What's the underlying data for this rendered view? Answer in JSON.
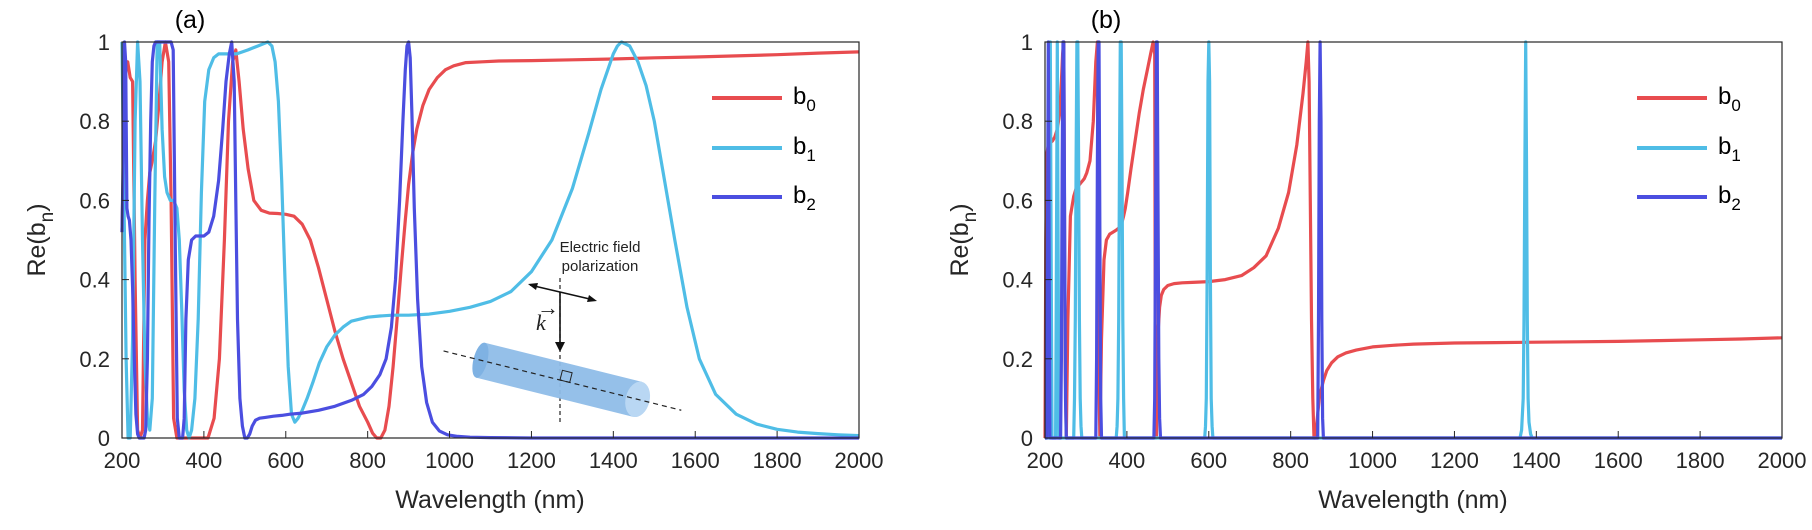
{
  "colors": {
    "b0": "#e84c4f",
    "b1": "#4fbde6",
    "b2": "#4b4ee0",
    "axis": "#262626",
    "rod": "#8fbde8"
  },
  "chart_data": [
    {
      "type": "line",
      "title": "(a)",
      "xlabel": "Wavelength (nm)",
      "ylabel": "Re(b_n)",
      "xlim": [
        200,
        2000
      ],
      "ylim": [
        0,
        1
      ],
      "xticks": [
        "200",
        "400",
        "600",
        "800",
        "1000",
        "1200",
        "1400",
        "1600",
        "1800",
        "2000"
      ],
      "yticks": [
        "0",
        "0.2",
        "0.4",
        "0.6",
        "0.8",
        "1"
      ],
      "legend_position": "top-right",
      "inset": {
        "label_line1": "Electric field",
        "label_line2": "polarization",
        "k_label": "k"
      },
      "series": [
        {
          "key": "b0",
          "name": "b",
          "sub": "0",
          "x": [
            200,
            208,
            214,
            220,
            226,
            232,
            238,
            244,
            250,
            256,
            262,
            268,
            274,
            282,
            290,
            298,
            306,
            314,
            320,
            326,
            334,
            342,
            350,
            360,
            372,
            390,
            410,
            425,
            438,
            450,
            460,
            470,
            478,
            486,
            496,
            508,
            522,
            540,
            560,
            580,
            600,
            620,
            640,
            660,
            680,
            700,
            720,
            740,
            760,
            780,
            800,
            812,
            822,
            832,
            842,
            852,
            862,
            872,
            882,
            892,
            900,
            910,
            920,
            935,
            950,
            970,
            990,
            1010,
            1040,
            1080,
            1120,
            1200,
            1300,
            1400,
            1500,
            1600,
            1700,
            1800,
            1900,
            2000
          ],
          "y": [
            0.52,
            0.92,
            0.95,
            0.91,
            0.9,
            0.4,
            0.02,
            0.0,
            0.02,
            0.5,
            0.6,
            0.67,
            0.7,
            0.75,
            0.84,
            0.95,
            1.0,
            0.95,
            0.6,
            0.05,
            0.0,
            0.0,
            0.0,
            0.0,
            0.0,
            0.0,
            0.0,
            0.05,
            0.2,
            0.5,
            0.8,
            0.95,
            0.98,
            0.9,
            0.78,
            0.68,
            0.6,
            0.575,
            0.568,
            0.567,
            0.565,
            0.56,
            0.54,
            0.5,
            0.43,
            0.35,
            0.27,
            0.2,
            0.14,
            0.08,
            0.04,
            0.012,
            0.0,
            0.0,
            0.02,
            0.08,
            0.18,
            0.3,
            0.43,
            0.55,
            0.64,
            0.72,
            0.78,
            0.84,
            0.88,
            0.91,
            0.93,
            0.94,
            0.948,
            0.95,
            0.952,
            0.953,
            0.955,
            0.957,
            0.96,
            0.962,
            0.965,
            0.968,
            0.972,
            0.975
          ]
        },
        {
          "key": "b1",
          "name": "b",
          "sub": "1",
          "x": [
            200,
            205,
            210,
            215,
            220,
            226,
            232,
            238,
            244,
            250,
            256,
            262,
            268,
            274,
            280,
            286,
            292,
            298,
            304,
            310,
            318,
            326,
            334,
            340,
            346,
            352,
            358,
            364,
            370,
            378,
            386,
            394,
            402,
            412,
            424,
            436,
            450,
            466,
            480,
            494,
            508,
            520,
            532,
            544,
            556,
            566,
            574,
            582,
            590,
            598,
            606,
            614,
            622,
            630,
            640,
            652,
            666,
            682,
            700,
            720,
            740,
            760,
            780,
            800,
            830,
            860,
            900,
            950,
            1000,
            1050,
            1100,
            1150,
            1200,
            1250,
            1300,
            1340,
            1370,
            1390,
            1400,
            1410,
            1420,
            1440,
            1460,
            1480,
            1500,
            1520,
            1550,
            1580,
            1610,
            1650,
            1700,
            1750,
            1800,
            1850,
            1900,
            1950,
            2000
          ],
          "y": [
            1.0,
            0.6,
            0.2,
            0.0,
            0.0,
            0.25,
            0.8,
            1.0,
            0.9,
            0.5,
            0.2,
            0.05,
            0.02,
            0.1,
            0.6,
            1.0,
            1.0,
            0.78,
            0.66,
            0.62,
            0.6,
            0.6,
            0.58,
            0.5,
            0.32,
            0.12,
            0.02,
            0.0,
            0.02,
            0.1,
            0.3,
            0.62,
            0.85,
            0.93,
            0.96,
            0.97,
            0.97,
            0.97,
            0.97,
            0.975,
            0.98,
            0.985,
            0.99,
            0.995,
            1.0,
            0.99,
            0.95,
            0.85,
            0.65,
            0.4,
            0.18,
            0.06,
            0.04,
            0.05,
            0.07,
            0.1,
            0.14,
            0.19,
            0.23,
            0.26,
            0.28,
            0.295,
            0.3,
            0.305,
            0.308,
            0.31,
            0.31,
            0.313,
            0.32,
            0.33,
            0.345,
            0.37,
            0.42,
            0.5,
            0.63,
            0.77,
            0.88,
            0.94,
            0.97,
            0.99,
            1.0,
            0.99,
            0.95,
            0.89,
            0.8,
            0.68,
            0.5,
            0.33,
            0.2,
            0.11,
            0.06,
            0.035,
            0.022,
            0.015,
            0.011,
            0.008,
            0.006
          ]
        },
        {
          "key": "b2",
          "name": "b",
          "sub": "2",
          "x": [
            200,
            203,
            206,
            209,
            212,
            215,
            218,
            222,
            226,
            230,
            234,
            238,
            242,
            246,
            250,
            254,
            258,
            262,
            266,
            270,
            274,
            278,
            282,
            286,
            290,
            296,
            300,
            305,
            310,
            315,
            320,
            325,
            330,
            335,
            340,
            344,
            348,
            352,
            356,
            362,
            370,
            380,
            390,
            400,
            412,
            424,
            436,
            446,
            454,
            462,
            468,
            474,
            478,
            482,
            488,
            494,
            500,
            506,
            512,
            518,
            526,
            536,
            550,
            570,
            590,
            610,
            640,
            680,
            720,
            760,
            790,
            810,
            830,
            845,
            858,
            868,
            878,
            886,
            892,
            896,
            900,
            904,
            908,
            914,
            922,
            932,
            944,
            958,
            975,
            995,
            1020,
            1050,
            1100,
            1200,
            1400,
            1600,
            1800,
            2000
          ],
          "y": [
            0.52,
            0.7,
            1.0,
            0.95,
            0.58,
            0.56,
            0.55,
            0.5,
            0.38,
            0.2,
            0.06,
            0.01,
            0.0,
            0.0,
            0.0,
            0.0,
            0.02,
            0.2,
            0.55,
            0.8,
            0.95,
            0.99,
            1.0,
            1.0,
            1.0,
            1.0,
            1.0,
            1.0,
            1.0,
            1.0,
            1.0,
            0.98,
            0.5,
            0.05,
            0.0,
            0.0,
            0.0,
            0.05,
            0.3,
            0.45,
            0.5,
            0.51,
            0.51,
            0.51,
            0.52,
            0.56,
            0.65,
            0.78,
            0.9,
            0.97,
            1.0,
            0.9,
            0.6,
            0.3,
            0.1,
            0.03,
            0.0,
            0.0,
            0.01,
            0.03,
            0.045,
            0.05,
            0.052,
            0.055,
            0.057,
            0.06,
            0.063,
            0.07,
            0.08,
            0.095,
            0.11,
            0.13,
            0.16,
            0.2,
            0.28,
            0.4,
            0.6,
            0.8,
            0.93,
            0.99,
            1.0,
            0.96,
            0.82,
            0.58,
            0.35,
            0.18,
            0.09,
            0.04,
            0.018,
            0.008,
            0.004,
            0.002,
            0.001,
            0.0,
            0.0,
            0.0,
            0.0,
            0.0
          ]
        }
      ]
    },
    {
      "type": "line",
      "title": "(b)",
      "xlabel": "Wavelength (nm)",
      "ylabel": "Re(b_n)",
      "xlim": [
        200,
        2000
      ],
      "ylim": [
        0,
        1
      ],
      "xticks": [
        "200",
        "400",
        "600",
        "800",
        "1000",
        "1200",
        "1400",
        "1600",
        "1800",
        "2000"
      ],
      "yticks": [
        "0",
        "0.2",
        "0.4",
        "0.6",
        "0.8",
        "1"
      ],
      "legend_position": "top-right",
      "series": [
        {
          "key": "b0",
          "name": "b",
          "sub": "0",
          "x": [
            200,
            202,
            205,
            208,
            212,
            218,
            224,
            230,
            236,
            240,
            243,
            246,
            249,
            252,
            256,
            262,
            270,
            276,
            280,
            284,
            288,
            292,
            296,
            302,
            310,
            318,
            324,
            328,
            331,
            334,
            338,
            344,
            350,
            358,
            366,
            374,
            380,
            384,
            388,
            392,
            396,
            402,
            410,
            420,
            430,
            440,
            450,
            458,
            464,
            468,
            470,
            472,
            474,
            477,
            480,
            484,
            490,
            500,
            515,
            535,
            560,
            600,
            640,
            680,
            710,
            740,
            770,
            795,
            815,
            830,
            838,
            842,
            845,
            848,
            851,
            854,
            857,
            860,
            862,
            864,
            866,
            868,
            870,
            874,
            880,
            888,
            900,
            915,
            935,
            960,
            1000,
            1050,
            1100,
            1200,
            1300,
            1400,
            1500,
            1600,
            1700,
            1800,
            1900,
            2000
          ],
          "y": [
            0.0,
            0.5,
            0.72,
            0.74,
            0.745,
            0.75,
            0.76,
            0.78,
            0.82,
            0.9,
            0.97,
            1.0,
            0.2,
            0.0,
            0.3,
            0.56,
            0.61,
            0.63,
            0.635,
            0.64,
            0.645,
            0.65,
            0.655,
            0.67,
            0.7,
            0.8,
            0.95,
            1.0,
            0.2,
            0.0,
            0.25,
            0.45,
            0.5,
            0.515,
            0.52,
            0.525,
            0.53,
            0.535,
            0.545,
            0.56,
            0.58,
            0.62,
            0.68,
            0.75,
            0.82,
            0.88,
            0.93,
            0.97,
            1.0,
            0.97,
            0.0,
            0.0,
            0.15,
            0.28,
            0.33,
            0.36,
            0.375,
            0.385,
            0.39,
            0.392,
            0.393,
            0.395,
            0.4,
            0.41,
            0.43,
            0.46,
            0.53,
            0.62,
            0.74,
            0.87,
            0.95,
            1.0,
            0.9,
            0.6,
            0.3,
            0.1,
            0.0,
            0.0,
            0.02,
            0.04,
            0.06,
            0.08,
            0.1,
            0.12,
            0.145,
            0.17,
            0.19,
            0.205,
            0.215,
            0.222,
            0.23,
            0.234,
            0.237,
            0.24,
            0.241,
            0.242,
            0.243,
            0.244,
            0.246,
            0.248,
            0.25,
            0.253
          ]
        },
        {
          "key": "b1",
          "name": "b",
          "sub": "1",
          "x": [
            200,
            209,
            211,
            213,
            215,
            217,
            226,
            228,
            230,
            232,
            234,
            270,
            272,
            274,
            276,
            278,
            280,
            282,
            284,
            286,
            288,
            290,
            374,
            376,
            378,
            380,
            382,
            384,
            386,
            388,
            390,
            392,
            394,
            590,
            592,
            594,
            596,
            598,
            600,
            602,
            604,
            606,
            608,
            610,
            1360,
            1364,
            1368,
            1370,
            1372,
            1374,
            1376,
            1378,
            1380,
            1382,
            1386,
            1390,
            2000
          ],
          "y": [
            0,
            0,
            0.5,
            1,
            0.5,
            0,
            0,
            0.5,
            1,
            0.5,
            0,
            0,
            0.1,
            0.3,
            0.7,
            1,
            1,
            0.7,
            0.3,
            0.1,
            0.03,
            0,
            0,
            0.03,
            0.1,
            0.3,
            0.7,
            1,
            1,
            0.7,
            0.3,
            0.1,
            0,
            0,
            0.03,
            0.1,
            0.4,
            0.9,
            1,
            0.9,
            0.4,
            0.1,
            0.03,
            0,
            0,
            0.02,
            0.1,
            0.3,
            0.7,
            1,
            0.7,
            0.3,
            0.1,
            0.04,
            0.01,
            0,
            0
          ]
        },
        {
          "key": "b2",
          "name": "b",
          "sub": "2",
          "x": [
            200,
            204,
            206,
            208,
            210,
            212,
            238,
            240,
            242,
            244,
            246,
            248,
            250,
            252,
            324,
            326,
            328,
            330,
            332,
            334,
            336,
            338,
            466,
            468,
            470,
            472,
            474,
            476,
            478,
            480,
            482,
            866,
            868,
            870,
            872,
            874,
            876,
            878,
            880,
            2000
          ],
          "y": [
            0,
            0,
            0.5,
            1,
            0.5,
            0,
            0,
            0.2,
            0.7,
            1,
            1,
            0.5,
            0.1,
            0,
            0,
            0.2,
            0.7,
            1,
            1,
            0.5,
            0.1,
            0,
            0,
            0.1,
            0.5,
            1,
            1,
            0.6,
            0.2,
            0.05,
            0,
            0,
            0.3,
            0.8,
            1,
            0.8,
            0.3,
            0.05,
            0,
            0
          ]
        }
      ]
    }
  ]
}
